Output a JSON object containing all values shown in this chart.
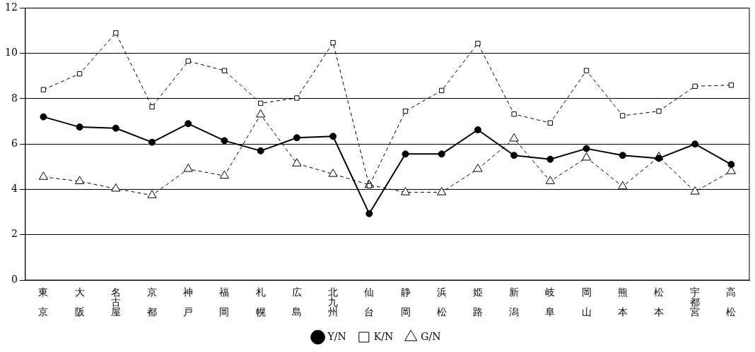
{
  "chart_data": {
    "type": "line",
    "categories": [
      "東京",
      "大阪",
      "名古屋",
      "京都",
      "神戸",
      "福岡",
      "札幌",
      "広島",
      "北九州",
      "仙台",
      "静岡",
      "浜松",
      "姫路",
      "新潟",
      "岐阜",
      "岡山",
      "熊本",
      "松本",
      "宇都宮",
      "高松"
    ],
    "series": [
      {
        "name": "Y/N",
        "color": "#000000",
        "marker": "circle",
        "line_style": "solid",
        "values": [
          7.2,
          6.75,
          6.7,
          6.08,
          6.9,
          6.15,
          5.7,
          6.28,
          6.34,
          2.93,
          5.56,
          5.56,
          6.63,
          5.5,
          5.33,
          5.8,
          5.5,
          5.37,
          6.0,
          5.1
        ]
      },
      {
        "name": "K/N",
        "color": "#000000",
        "marker": "square",
        "line_style": "dashed",
        "values": [
          8.4,
          9.1,
          10.9,
          7.64,
          9.66,
          9.24,
          7.8,
          8.03,
          10.47,
          4.16,
          7.45,
          8.36,
          10.44,
          7.32,
          6.93,
          9.24,
          7.25,
          7.45,
          8.55,
          8.6
        ]
      },
      {
        "name": "G/N",
        "color": "#000000",
        "marker": "triangle",
        "line_style": "dashed",
        "values": [
          4.55,
          4.36,
          4.03,
          3.74,
          4.9,
          4.6,
          7.3,
          5.14,
          4.68,
          4.2,
          3.87,
          3.87,
          4.9,
          6.24,
          4.36,
          5.4,
          4.13,
          5.43,
          3.9,
          4.8
        ]
      }
    ],
    "ylim": [
      0,
      12
    ],
    "yticks": [
      0,
      2,
      4,
      6,
      8,
      10,
      12
    ],
    "grid": "y",
    "legend": "bottom"
  }
}
